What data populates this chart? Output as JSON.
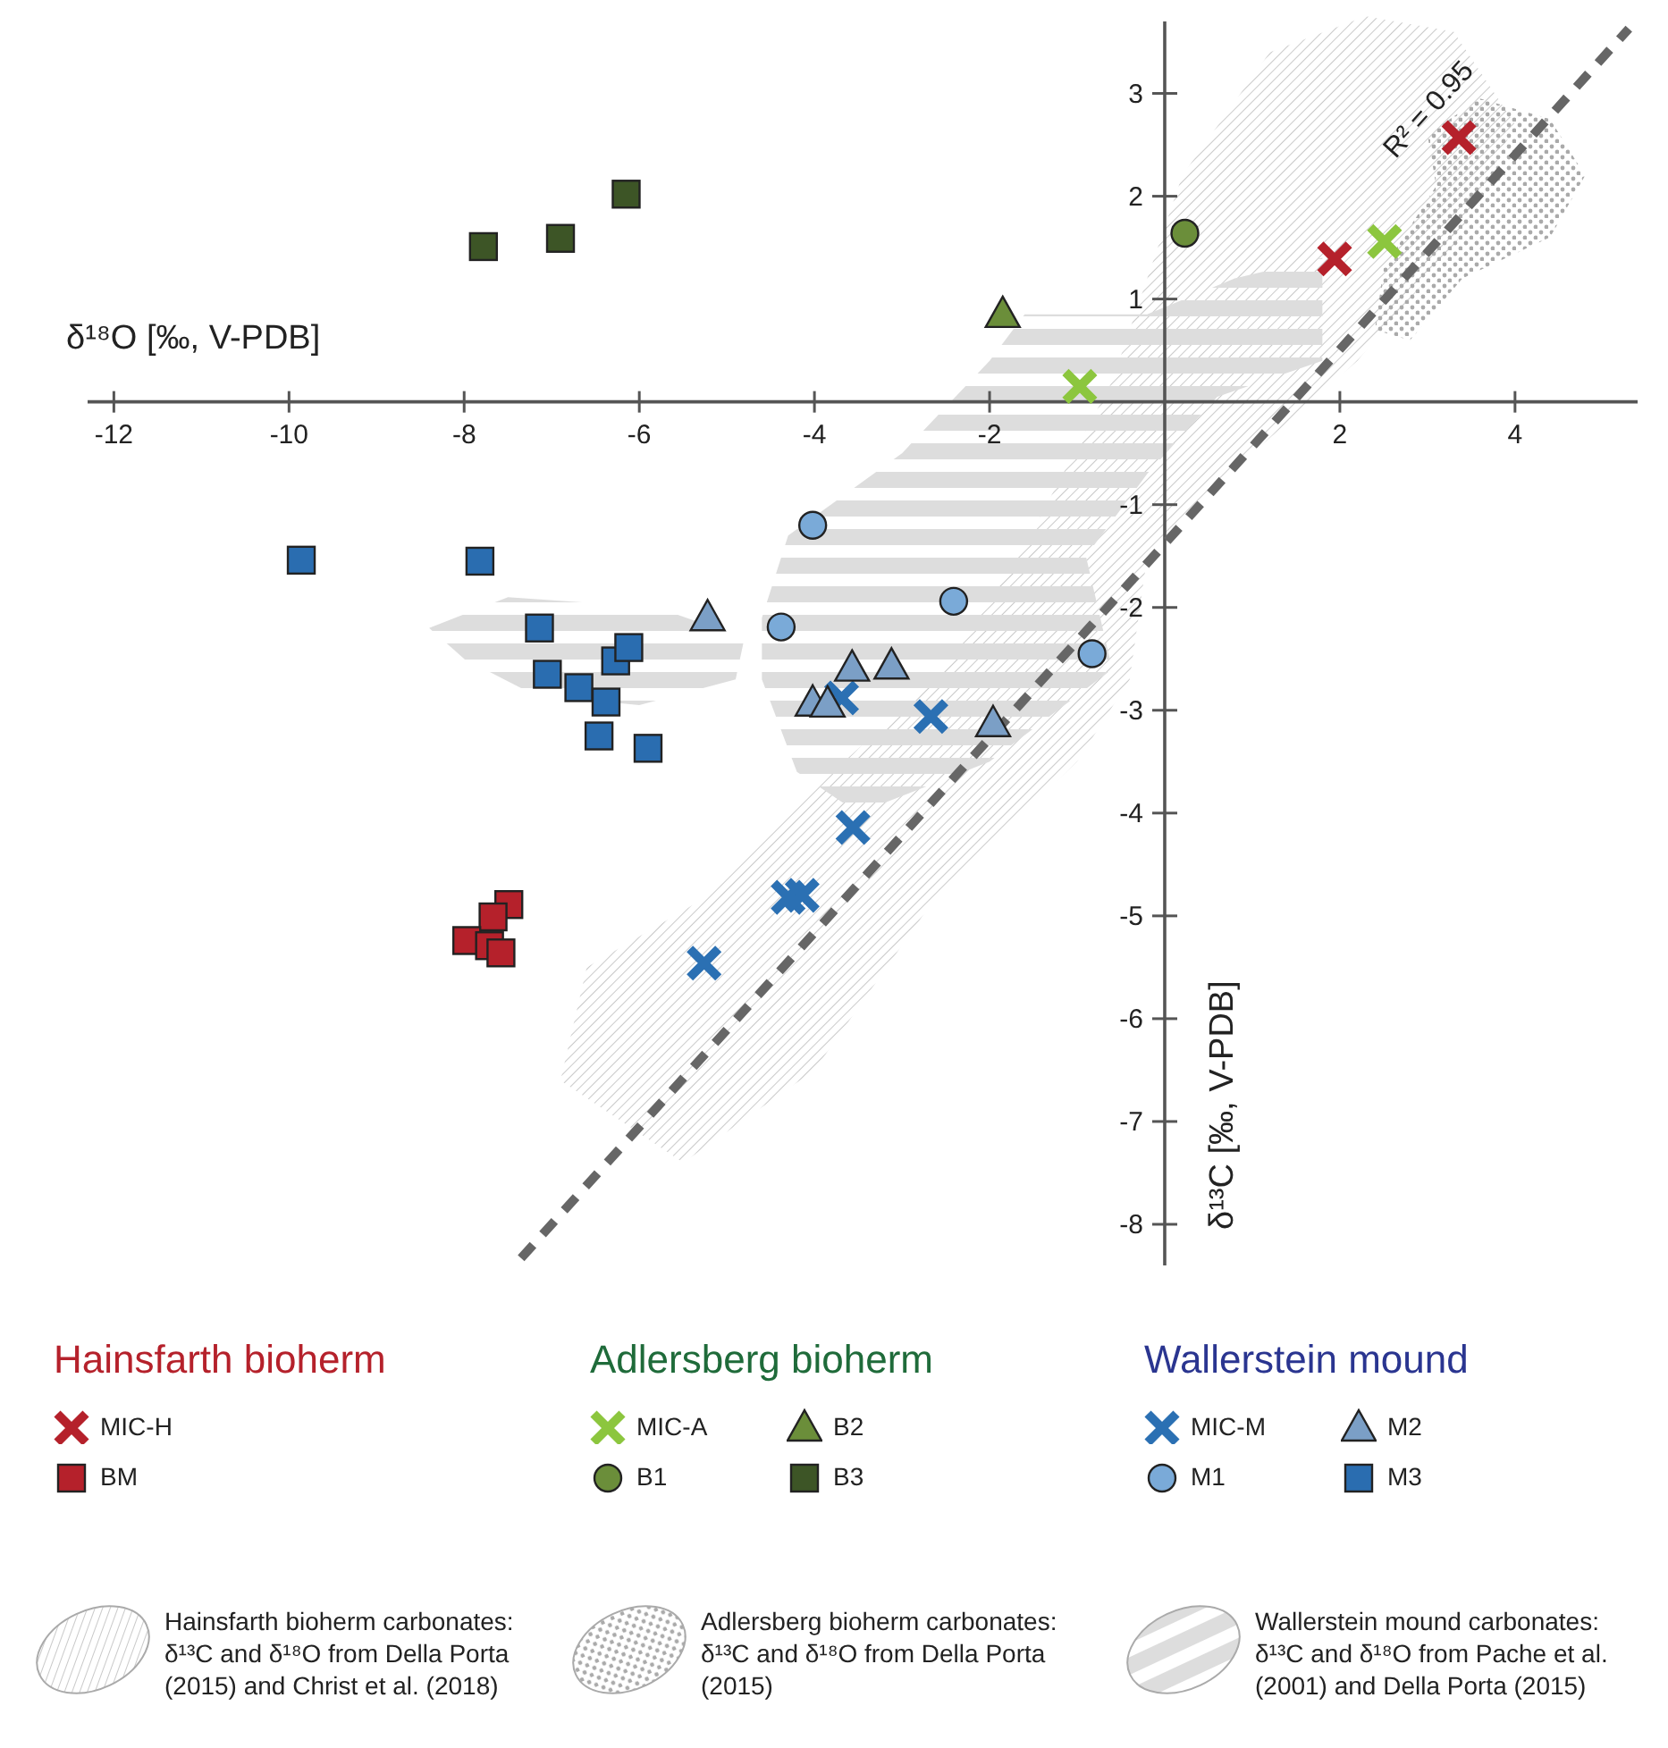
{
  "chart_data": {
    "type": "scatter",
    "xlabel": "δ¹⁸O [‰, V-PDB]",
    "ylabel": "δ¹³C [‰, V-PDB]",
    "xlim": [
      -12.3,
      5.4
    ],
    "ylim": [
      -8.4,
      3.7
    ],
    "xticks": [
      -12,
      -10,
      -8,
      -6,
      -4,
      -2,
      2,
      4
    ],
    "yticks": [
      3,
      2,
      1,
      -1,
      -2,
      -3,
      -4,
      -5,
      -6,
      -7,
      -8
    ],
    "legend": "bottom",
    "series": [
      {
        "name": "MIC-H",
        "color": "#b5212b",
        "marker": "cross",
        "x": [
          1.94,
          3.36
        ],
        "values": [
          1.39,
          2.57
        ]
      },
      {
        "name": "BM",
        "color": "#b5212b",
        "marker": "square",
        "x": [
          -7.49,
          -7.67,
          -7.97,
          -7.71,
          -7.58
        ],
        "values": [
          -4.89,
          -5.01,
          -5.24,
          -5.29,
          -5.36
        ]
      },
      {
        "name": "MIC-A",
        "color": "#8cc63e",
        "marker": "cross",
        "x": [
          2.51,
          -0.97
        ],
        "values": [
          1.56,
          0.15
        ]
      },
      {
        "name": "B1",
        "color": "#6b8e3a",
        "marker": "circle",
        "x": [
          0.23
        ],
        "values": [
          1.64
        ]
      },
      {
        "name": "B2",
        "color": "#6b8e3a",
        "marker": "triangle",
        "x": [
          -1.85
        ],
        "values": [
          0.85
        ]
      },
      {
        "name": "B3",
        "color": "#3d5526",
        "marker": "square",
        "x": [
          -7.78,
          -6.9,
          -6.15
        ],
        "values": [
          1.51,
          1.59,
          2.02
        ]
      },
      {
        "name": "MIC-M",
        "color": "#2b70b3",
        "marker": "cross",
        "x": [
          -3.69,
          -2.67,
          -3.56,
          -4.3,
          -4.14,
          -5.26
        ],
        "values": [
          -2.88,
          -3.06,
          -4.14,
          -4.82,
          -4.8,
          -5.46
        ]
      },
      {
        "name": "M1",
        "color": "#7aaad8",
        "marker": "circle",
        "x": [
          -4.02,
          -2.41,
          -4.38,
          -0.83
        ],
        "values": [
          -1.2,
          -1.94,
          -2.19,
          -2.45
        ]
      },
      {
        "name": "M2",
        "color": "#7b9fc6",
        "marker": "triangle",
        "x": [
          -5.22,
          -3.57,
          -3.12,
          -4.02,
          -3.85,
          -1.96
        ],
        "values": [
          -2.1,
          -2.59,
          -2.57,
          -2.93,
          -2.94,
          -3.13
        ]
      },
      {
        "name": "M3",
        "color": "#2a6db0",
        "marker": "square",
        "x": [
          -9.86,
          -7.82,
          -7.14,
          -7.05,
          -6.69,
          -6.27,
          -6.12,
          -6.38,
          -6.46,
          -5.9
        ],
        "values": [
          -1.54,
          -1.55,
          -2.2,
          -2.65,
          -2.78,
          -2.52,
          -2.39,
          -2.92,
          -3.25,
          -3.37
        ]
      },
      {
        "type": "line",
        "color": "#666666",
        "marker": "none",
        "line_style": "dashed",
        "x": [
          -7.35,
          5.3
        ],
        "values": [
          -8.33,
          3.63
        ]
      }
    ],
    "annotations": [
      "Hainsfarth bioherm",
      "Adlersberg bioherm",
      "Wallerstein mound",
      "Hainsfarth bioherm carbonates: δ¹³C and δ¹⁸O from Della Porta (2015) and Christ et al. (2018)",
      "Adlersberg bioherm carbonates: δ¹³C and δ¹⁸O from Della Porta (2015)",
      "Wallerstein mound carbonates: δ¹³C and δ¹⁸O from Pache et al. (2001) and Della Porta (2015)",
      "R² = 0.95"
    ]
  }
}
